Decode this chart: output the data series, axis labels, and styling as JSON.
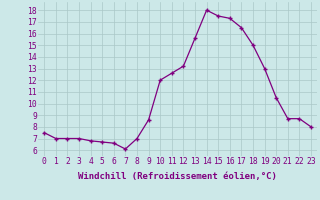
{
  "x": [
    0,
    1,
    2,
    3,
    4,
    5,
    6,
    7,
    8,
    9,
    10,
    11,
    12,
    13,
    14,
    15,
    16,
    17,
    18,
    19,
    20,
    21,
    22,
    23
  ],
  "y": [
    7.5,
    7.0,
    7.0,
    7.0,
    6.8,
    6.7,
    6.6,
    6.1,
    7.0,
    8.6,
    12.0,
    12.6,
    13.2,
    15.6,
    18.0,
    17.5,
    17.3,
    16.5,
    15.0,
    13.0,
    10.5,
    8.7,
    8.7,
    8.0
  ],
  "line_color": "#800080",
  "marker": "+",
  "marker_size": 3.5,
  "linewidth": 0.9,
  "xlabel": "Windchill (Refroidissement éolien,°C)",
  "xlabel_fontsize": 6.5,
  "ylabel_ticks": [
    6,
    7,
    8,
    9,
    10,
    11,
    12,
    13,
    14,
    15,
    16,
    17,
    18
  ],
  "xlim": [
    -0.5,
    23.5
  ],
  "ylim": [
    5.5,
    18.7
  ],
  "background_color": "#cce8e8",
  "grid_color": "#aac8c8",
  "tick_color": "#800080",
  "tick_fontsize": 5.8,
  "xtick_labels": [
    "0",
    "1",
    "2",
    "3",
    "4",
    "5",
    "6",
    "7",
    "8",
    "9",
    "10",
    "11",
    "12",
    "13",
    "14",
    "15",
    "16",
    "17",
    "18",
    "19",
    "20",
    "21",
    "22",
    "23"
  ]
}
